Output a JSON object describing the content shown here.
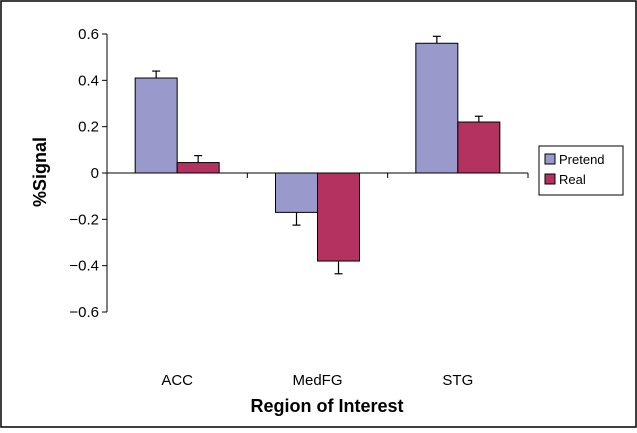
{
  "chart_data": {
    "type": "bar",
    "title": "",
    "xlabel": "Region of Interest",
    "ylabel": "%Signal",
    "categories": [
      "ACC",
      "MedFG",
      "STG"
    ],
    "series": [
      {
        "name": "Pretend",
        "color": "#9999cc",
        "values": [
          0.41,
          -0.17,
          0.56
        ],
        "errors": [
          0.03,
          0.055,
          0.03
        ]
      },
      {
        "name": "Real",
        "color": "#b3325f",
        "values": [
          0.045,
          -0.38,
          0.22
        ],
        "errors": [
          0.03,
          0.055,
          0.025
        ]
      }
    ],
    "ylim": [
      -0.6,
      0.6
    ],
    "yticks": [
      {
        "value": 0.6,
        "label": "0.6"
      },
      {
        "value": 0.4,
        "label": "0.4"
      },
      {
        "value": 0.2,
        "label": "0.2"
      },
      {
        "value": 0,
        "label": "0"
      },
      {
        "value": -0.2,
        "label": "−0.2"
      },
      {
        "value": -0.4,
        "label": "−0.4"
      },
      {
        "value": -0.6,
        "label": "−0.6"
      }
    ],
    "grid": false,
    "legend_position": "right"
  }
}
